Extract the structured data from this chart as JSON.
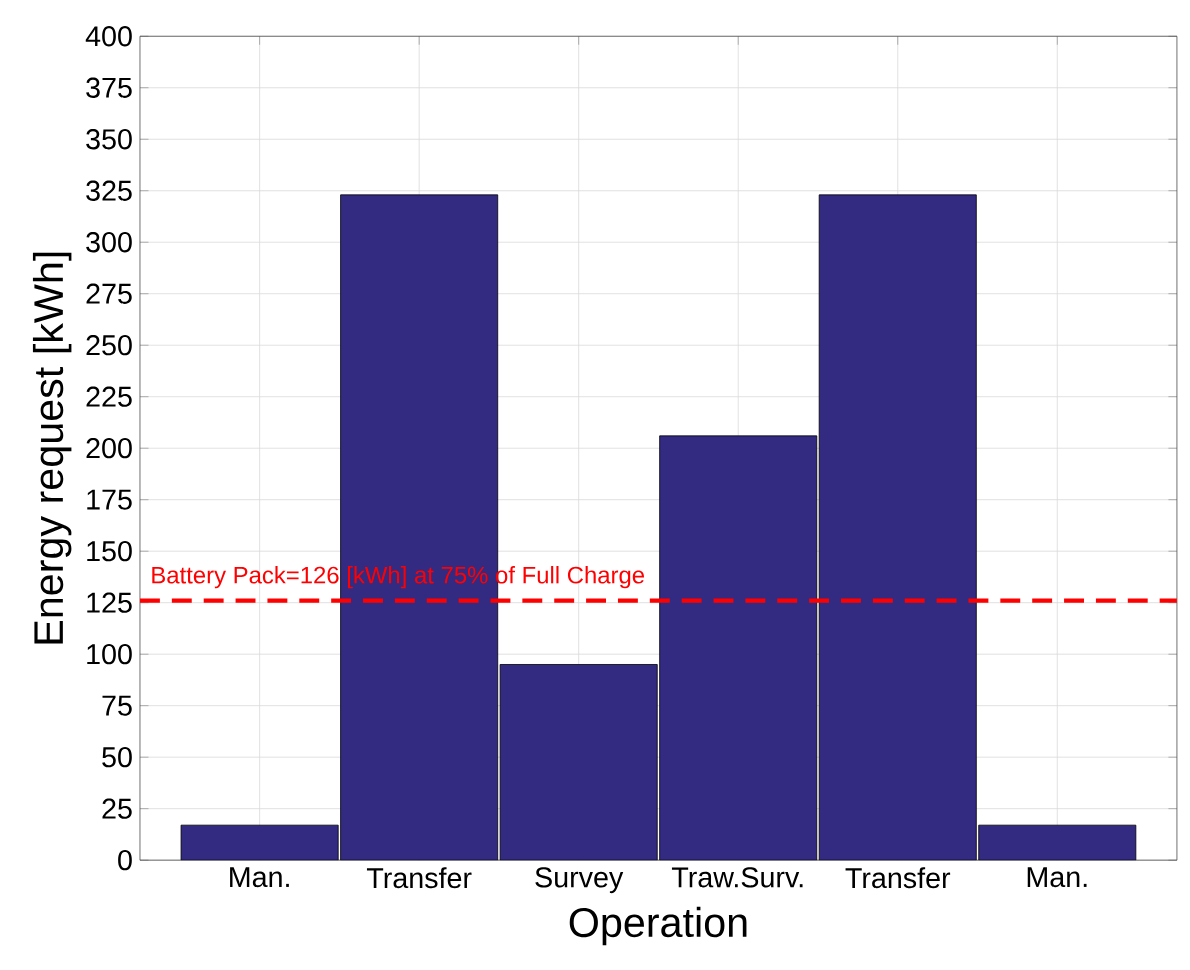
{
  "chart_data": {
    "type": "bar",
    "xlabel": "Operation",
    "ylabel": "Energy request [kWh]",
    "categories": [
      "Man.",
      "Transfer",
      "Survey",
      "Traw.Surv.",
      "Transfer",
      "Man."
    ],
    "values": [
      17,
      323,
      95,
      206,
      323,
      17
    ],
    "color": "#332a82",
    "ylim": [
      0,
      400
    ],
    "yticks": [
      0,
      25,
      50,
      75,
      100,
      125,
      150,
      175,
      200,
      225,
      250,
      275,
      300,
      325,
      350,
      375,
      400
    ],
    "grid": true,
    "ref_lines": [
      {
        "axis": "y",
        "value": 126,
        "label": "Battery Pack=126 [kWh] at 75% of Full Charge",
        "color": "#ff0000",
        "line_style": "dashed"
      }
    ]
  }
}
